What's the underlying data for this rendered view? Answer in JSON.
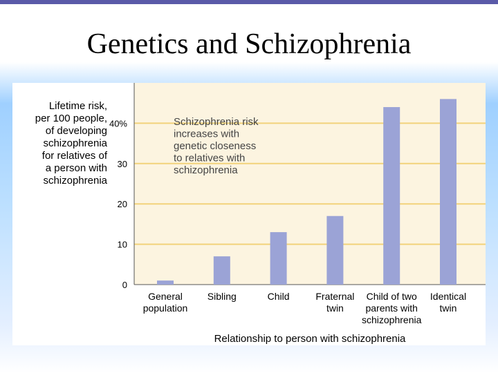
{
  "slide": {
    "title": "Genetics and Schizophrenia"
  },
  "chart_data": {
    "type": "bar",
    "ylabel_lines": [
      "Lifetime risk,",
      "per 100 people,",
      "of developing",
      "schizophrenia",
      "for relatives of",
      "a person with",
      "schizophrenia"
    ],
    "xlabel": "Relationship to person with schizophrenia",
    "annotation_lines": [
      "Schizophrenia risk",
      "increases with",
      "genetic closeness",
      "to relatives with",
      "schizophrenia"
    ],
    "ylim": [
      0,
      50
    ],
    "yticks": [
      0,
      10,
      20,
      30,
      40
    ],
    "ytick_labels": [
      "0",
      "10",
      "20",
      "30",
      "40%"
    ],
    "grid": true,
    "categories": [
      {
        "lines": [
          "General",
          "population"
        ]
      },
      {
        "lines": [
          "Sibling"
        ]
      },
      {
        "lines": [
          "Child"
        ]
      },
      {
        "lines": [
          "Fraternal",
          "twin"
        ]
      },
      {
        "lines": [
          "Child of two",
          "parents with",
          "schizophrenia"
        ]
      },
      {
        "lines": [
          "Identical",
          "twin"
        ]
      }
    ],
    "values": [
      1,
      7,
      13,
      17,
      44,
      46
    ],
    "colors": {
      "plot_bg": "#fcf4e0",
      "grid": "#f2d27a",
      "bar": "#9ba3d6",
      "axis": "#555555"
    }
  }
}
